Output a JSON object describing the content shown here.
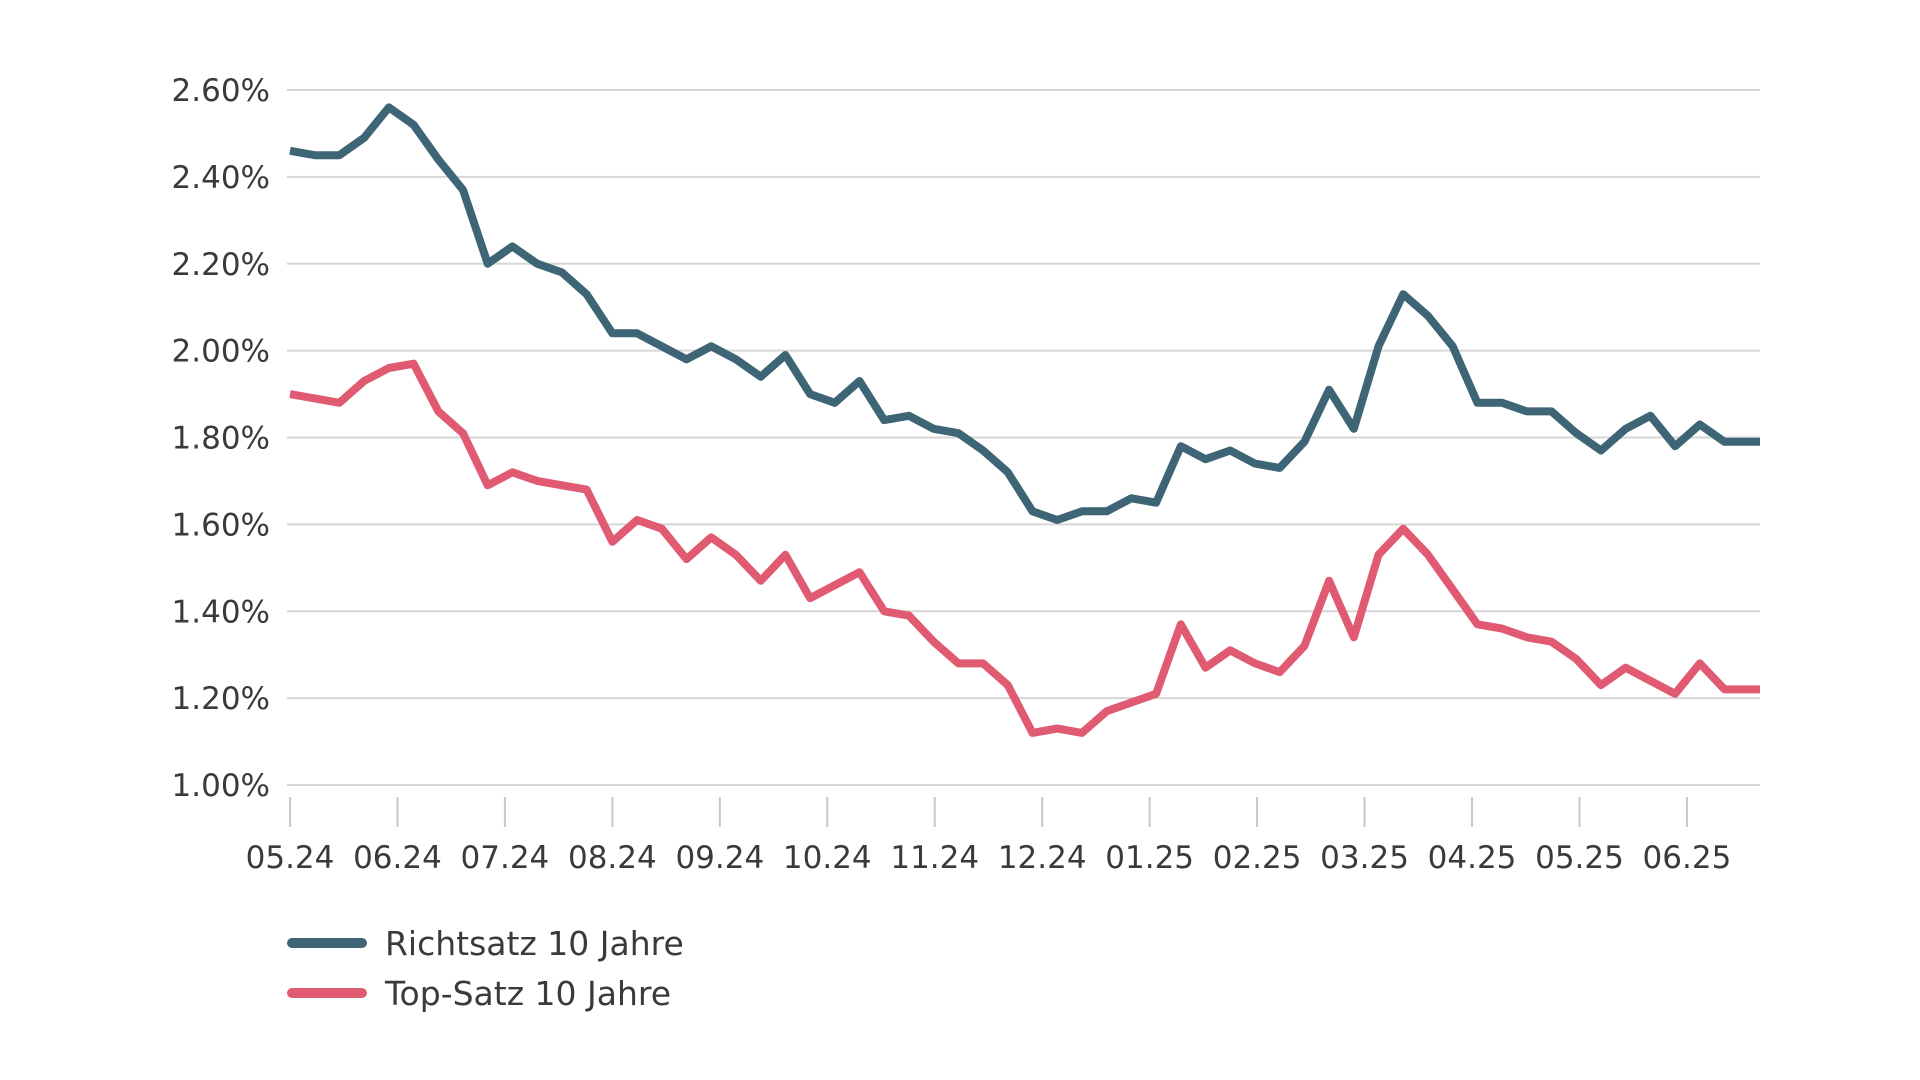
{
  "chart_data": {
    "type": "line",
    "title": "",
    "xlabel": "",
    "ylabel": "",
    "ylim": [
      1.0,
      2.6
    ],
    "y_ticks": [
      1.0,
      1.2,
      1.4,
      1.6,
      1.8,
      2.0,
      2.2,
      2.4,
      2.6
    ],
    "y_tick_labels": [
      "1.00%",
      "1.20%",
      "1.40%",
      "1.60%",
      "1.80%",
      "2.00%",
      "2.20%",
      "2.40%",
      "2.60%"
    ],
    "x_range": [
      0,
      13.68
    ],
    "x_ticks": [
      0,
      1,
      2,
      3,
      4,
      5,
      6,
      7,
      8,
      9,
      10,
      11,
      12,
      13
    ],
    "x_tick_labels": [
      "05.24",
      "06.24",
      "07.24",
      "08.24",
      "09.24",
      "10.24",
      "11.24",
      "12.24",
      "01.25",
      "02.25",
      "03.25",
      "04.25",
      "05.25",
      "06.25"
    ],
    "grid": "horizontal",
    "legend_position": "bottom-left",
    "series": [
      {
        "name": "Richtsatz 10 Jahre",
        "color": "#3d6575",
        "x": [
          0,
          0.23,
          0.46,
          0.69,
          0.92,
          1.15,
          1.38,
          1.61,
          1.84,
          2.07,
          2.3,
          2.53,
          2.76,
          3.0,
          3.23,
          3.46,
          3.69,
          3.92,
          4.15,
          4.38,
          4.61,
          4.84,
          5.07,
          5.3,
          5.53,
          5.76,
          5.99,
          6.22,
          6.45,
          6.68,
          6.91,
          7.14,
          7.37,
          7.6,
          7.83,
          8.06,
          8.29,
          8.52,
          8.75,
          8.98,
          9.21,
          9.44,
          9.67,
          9.9,
          10.13,
          10.36,
          10.59,
          10.82,
          11.05,
          11.28,
          11.51,
          11.74,
          11.97,
          12.2,
          12.43,
          12.66,
          12.89,
          13.12,
          13.35,
          13.68
        ],
        "values": [
          2.46,
          2.45,
          2.45,
          2.49,
          2.56,
          2.52,
          2.44,
          2.37,
          2.2,
          2.24,
          2.2,
          2.18,
          2.13,
          2.04,
          2.04,
          2.01,
          1.98,
          2.01,
          1.98,
          1.94,
          1.99,
          1.9,
          1.88,
          1.93,
          1.84,
          1.85,
          1.82,
          1.81,
          1.77,
          1.72,
          1.63,
          1.61,
          1.63,
          1.63,
          1.66,
          1.65,
          1.78,
          1.75,
          1.77,
          1.74,
          1.73,
          1.79,
          1.91,
          1.82,
          2.01,
          2.13,
          2.08,
          2.01,
          1.88,
          1.88,
          1.86,
          1.86,
          1.81,
          1.77,
          1.82,
          1.85,
          1.78,
          1.83,
          1.79,
          1.79
        ]
      },
      {
        "name": "Top-Satz 10 Jahre",
        "color": "#e05a72",
        "x": [
          0,
          0.23,
          0.46,
          0.69,
          0.92,
          1.15,
          1.38,
          1.61,
          1.84,
          2.07,
          2.3,
          2.53,
          2.76,
          3.0,
          3.23,
          3.46,
          3.69,
          3.92,
          4.15,
          4.38,
          4.61,
          4.84,
          5.07,
          5.3,
          5.53,
          5.76,
          5.99,
          6.22,
          6.45,
          6.68,
          6.91,
          7.14,
          7.37,
          7.6,
          7.83,
          8.06,
          8.29,
          8.52,
          8.75,
          8.98,
          9.21,
          9.44,
          9.67,
          9.9,
          10.13,
          10.36,
          10.59,
          10.82,
          11.05,
          11.28,
          11.51,
          11.74,
          11.97,
          12.2,
          12.43,
          12.66,
          12.89,
          13.12,
          13.35,
          13.68
        ],
        "values": [
          1.9,
          1.89,
          1.88,
          1.93,
          1.96,
          1.97,
          1.86,
          1.81,
          1.69,
          1.72,
          1.7,
          1.69,
          1.68,
          1.56,
          1.61,
          1.59,
          1.52,
          1.57,
          1.53,
          1.47,
          1.53,
          1.43,
          1.46,
          1.49,
          1.4,
          1.39,
          1.33,
          1.28,
          1.28,
          1.23,
          1.12,
          1.13,
          1.12,
          1.17,
          1.19,
          1.21,
          1.37,
          1.27,
          1.31,
          1.28,
          1.26,
          1.32,
          1.47,
          1.34,
          1.53,
          1.59,
          1.53,
          1.45,
          1.37,
          1.36,
          1.34,
          1.33,
          1.29,
          1.23,
          1.27,
          1.24,
          1.21,
          1.28,
          1.22,
          1.22
        ]
      }
    ]
  }
}
